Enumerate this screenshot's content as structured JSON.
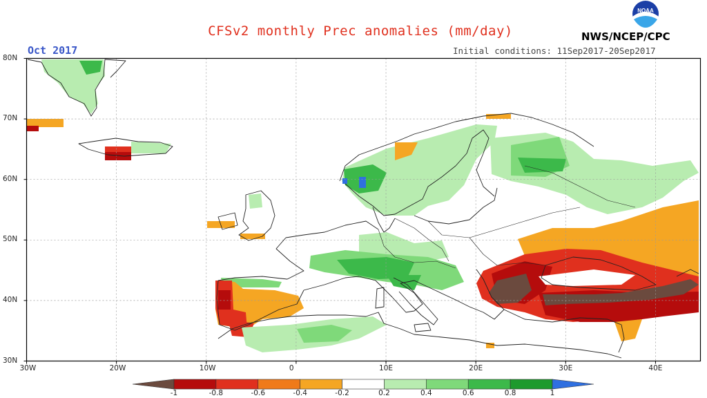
{
  "header": {
    "title": "CFSv2 monthly Prec anomalies (mm/day)",
    "month": "Oct 2017",
    "initial_conditions": "Initial conditions: 11Sep2017-20Sep2017",
    "brand": "NWS/NCEP/CPC",
    "logo_text": "NOAA"
  },
  "map": {
    "projection": "equirectangular",
    "lon_range": [
      -30,
      45
    ],
    "lat_range": [
      30,
      80
    ],
    "lat_ticks": [
      "80N",
      "70N",
      "60N",
      "50N",
      "40N",
      "30N"
    ],
    "lon_ticks": [
      "30W",
      "20W",
      "10W",
      "0",
      "10E",
      "20E",
      "30E",
      "40E"
    ]
  },
  "colorbar": {
    "labels": [
      "-1",
      "-0.8",
      "-0.6",
      "-0.4",
      "-0.2",
      "0.2",
      "0.4",
      "0.6",
      "0.8",
      "1"
    ],
    "colors": [
      "#6b4a3e",
      "#b50c0c",
      "#e0301e",
      "#f07a1a",
      "#f5a623",
      "#ffffff",
      "#b8ecb0",
      "#7fd97a",
      "#3cb94a",
      "#1d9a2d",
      "#2f6fe0"
    ]
  },
  "anomaly_regions": [
    {
      "region": "Greenland east coast",
      "level": "0.4"
    },
    {
      "region": "Greenland south tip",
      "level": "-0.4"
    },
    {
      "region": "Iceland west",
      "level": "-0.8"
    },
    {
      "region": "Iceland north/east",
      "level": "0.4"
    },
    {
      "region": "Norway west coast",
      "level": "0.8"
    },
    {
      "region": "Scandinavia interior",
      "level": "0.4"
    },
    {
      "region": "Finland / NW Russia",
      "level": "0.6"
    },
    {
      "region": "Western Russia",
      "level": "0.4"
    },
    {
      "region": "Alps / Northern Italy",
      "level": "0.6"
    },
    {
      "region": "Portugal west coast",
      "level": "-0.8"
    },
    {
      "region": "Spain",
      "level": "-0.4"
    },
    {
      "region": "Morocco",
      "level": "-0.6"
    },
    {
      "region": "North Africa / Algeria",
      "level": "0.4"
    },
    {
      "region": "Black Sea region",
      "level": "-0.8"
    },
    {
      "region": "Greece / Aegean",
      "level": "-1"
    },
    {
      "region": "Turkey",
      "level": "-0.8"
    },
    {
      "region": "Southern Russia / Kazakhstan",
      "level": "-0.4"
    }
  ]
}
